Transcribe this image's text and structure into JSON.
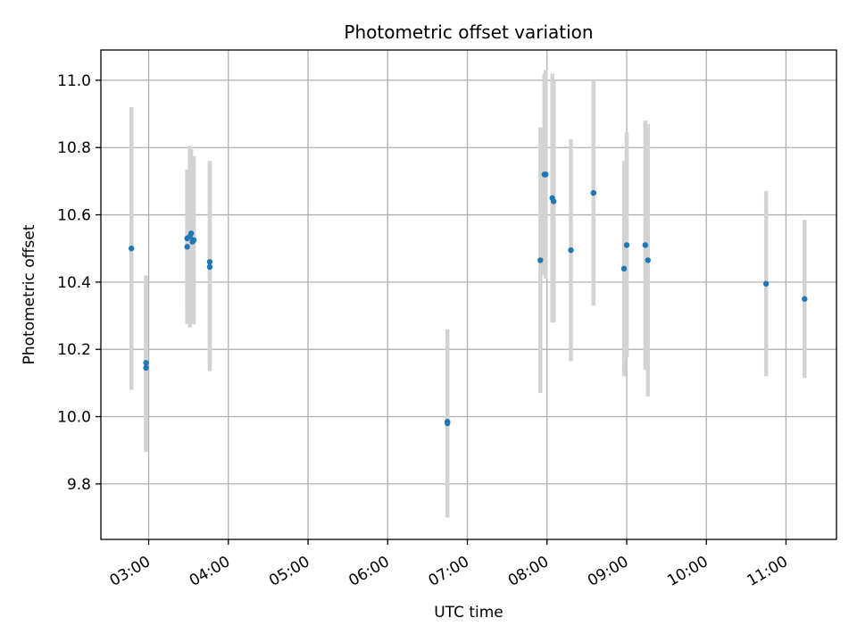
{
  "chart_data": {
    "type": "scatter",
    "title": "Photometric offset variation",
    "xlabel": "UTC time",
    "ylabel": "Photometric offset",
    "x_ticks": [
      "03:00",
      "04:00",
      "05:00",
      "06:00",
      "07:00",
      "08:00",
      "09:00",
      "10:00",
      "11:00"
    ],
    "y_ticks": [
      "9.8",
      "10.0",
      "10.2",
      "10.4",
      "10.6",
      "10.8",
      "11.0"
    ],
    "xlim": [
      "02:24",
      "11:38"
    ],
    "ylim": [
      9.635,
      11.09
    ],
    "grid": true,
    "legend": "none",
    "colors": {
      "point": "#1f77b4",
      "errorbar": "#d3d3d3"
    },
    "series": [
      {
        "points": [
          {
            "x": "02:47",
            "y": 10.5,
            "err": 0.42
          },
          {
            "x": "02:58",
            "y": 10.16,
            "err": 0.26
          },
          {
            "x": "02:58",
            "y": 10.145,
            "err": 0.25
          },
          {
            "x": "03:29",
            "y": 10.505,
            "err": 0.23
          },
          {
            "x": "03:29",
            "y": 10.53,
            "err": 0.2
          },
          {
            "x": "03:31",
            "y": 10.535,
            "err": 0.27
          },
          {
            "x": "03:32",
            "y": 10.545,
            "err": 0.25
          },
          {
            "x": "03:33",
            "y": 10.52,
            "err": 0.24
          },
          {
            "x": "03:34",
            "y": 10.525,
            "err": 0.25
          },
          {
            "x": "03:46",
            "y": 10.46,
            "err": 0.3
          },
          {
            "x": "03:46",
            "y": 10.445,
            "err": 0.31
          },
          {
            "x": "06:45",
            "y": 9.985,
            "err": 0.27
          },
          {
            "x": "06:45",
            "y": 9.98,
            "err": 0.28
          },
          {
            "x": "07:55",
            "y": 10.465,
            "err": 0.395
          },
          {
            "x": "07:58",
            "y": 10.72,
            "err": 0.3
          },
          {
            "x": "07:59",
            "y": 10.72,
            "err": 0.31
          },
          {
            "x": "08:04",
            "y": 10.65,
            "err": 0.37
          },
          {
            "x": "08:05",
            "y": 10.64,
            "err": 0.36
          },
          {
            "x": "08:18",
            "y": 10.495,
            "err": 0.33
          },
          {
            "x": "08:35",
            "y": 10.665,
            "err": 0.335
          },
          {
            "x": "08:58",
            "y": 10.44,
            "err": 0.32
          },
          {
            "x": "09:00",
            "y": 10.51,
            "err": 0.335
          },
          {
            "x": "09:14",
            "y": 10.51,
            "err": 0.37
          },
          {
            "x": "09:16",
            "y": 10.465,
            "err": 0.405
          },
          {
            "x": "10:45",
            "y": 10.395,
            "err": 0.275
          },
          {
            "x": "11:14",
            "y": 10.35,
            "err": 0.235
          }
        ]
      }
    ]
  }
}
